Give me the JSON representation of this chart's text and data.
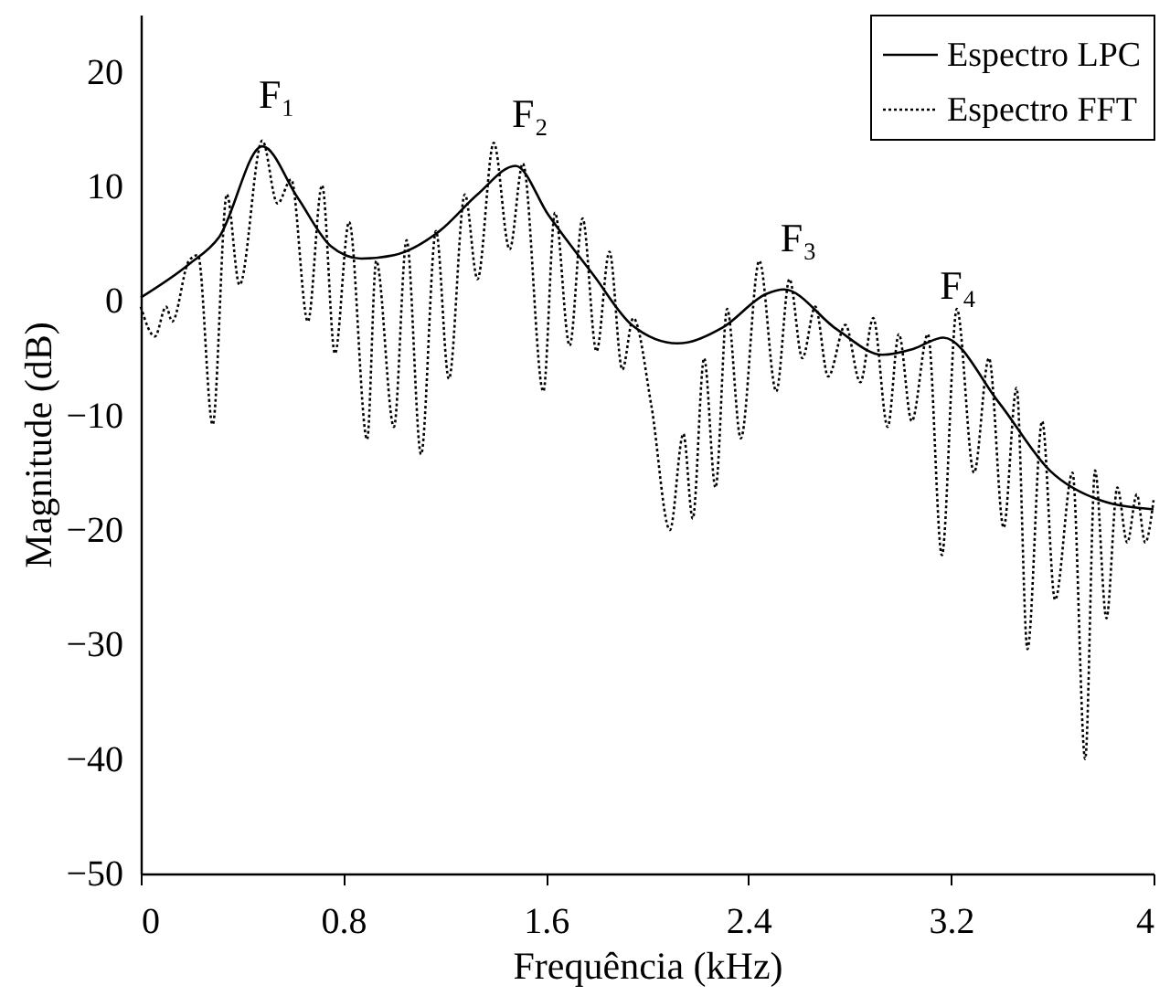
{
  "chart_data": {
    "type": "line",
    "xlabel": "Frequência (kHz)",
    "ylabel": "Magnitude (dB)",
    "xlim": [
      0,
      4
    ],
    "ylim": [
      -50,
      25
    ],
    "xticks": [
      {
        "value": 0,
        "label": "0"
      },
      0.8,
      1.6,
      2.4,
      3.2,
      {
        "value": 4,
        "label": "4"
      }
    ],
    "yticks": [
      -50,
      -40,
      -30,
      -20,
      -10,
      0,
      10,
      20
    ],
    "grid": false,
    "legend": "top right",
    "series": [
      {
        "name": "Espectro LPC",
        "color": "#000000",
        "line_style": "solid",
        "x": [
          0,
          0.19,
          0.31,
          0.48,
          0.62,
          0.75,
          0.87,
          1.0,
          1.18,
          1.33,
          1.48,
          1.61,
          1.79,
          1.94,
          2.12,
          2.3,
          2.47,
          2.54,
          2.75,
          2.93,
          3.05,
          3.17,
          3.39,
          3.59,
          3.79,
          4.0
        ],
        "values": [
          0.3,
          3.2,
          5.6,
          13.5,
          9,
          4.8,
          3.7,
          4,
          6.1,
          9.3,
          11.8,
          7.5,
          2.2,
          -2.1,
          -3.7,
          -2.3,
          0.6,
          1,
          -2.5,
          -4.7,
          -4.2,
          -3.2,
          -8.9,
          -14.8,
          -17.4,
          -18.2
        ]
      },
      {
        "name": "Espectro FFT",
        "color": "#000000",
        "line_style": "dotted",
        "x": [
          0,
          0.056,
          0.1,
          0.124,
          0.19,
          0.226,
          0.284,
          0.34,
          0.39,
          0.48,
          0.54,
          0.594,
          0.66,
          0.716,
          0.767,
          0.823,
          0.894,
          0.93,
          1.0,
          1.05,
          1.107,
          1.166,
          1.217,
          1.28,
          1.33,
          1.394,
          1.457,
          1.509,
          1.59,
          1.636,
          1.694,
          1.745,
          1.8,
          1.851,
          1.902,
          1.945,
          2.017,
          2.09,
          2.143,
          2.18,
          2.225,
          2.27,
          2.316,
          2.37,
          2.443,
          2.51,
          2.562,
          2.613,
          2.664,
          2.715,
          2.783,
          2.842,
          2.893,
          2.95,
          2.994,
          3.045,
          3.109,
          3.164,
          3.223,
          3.291,
          3.35,
          3.408,
          3.459,
          3.502,
          3.56,
          3.611,
          3.68,
          3.73,
          3.769,
          3.814,
          3.857,
          3.896,
          3.934,
          3.967,
          4.0
        ],
        "values": [
          -0.5,
          -3.1,
          -0.5,
          -1.8,
          3.5,
          4,
          -10.8,
          9.3,
          1.4,
          14,
          8.5,
          10.6,
          -1.8,
          10.1,
          -4.6,
          6.9,
          -12.1,
          3.5,
          -11,
          5.3,
          -13.4,
          6.1,
          -6.8,
          9.3,
          1.9,
          13.8,
          4.5,
          12,
          -7.9,
          7.7,
          -3.9,
          7.2,
          -4.4,
          4.3,
          -6,
          -1.5,
          -9.2,
          -20,
          -11.6,
          -19,
          -5,
          -16.3,
          -0.7,
          -12,
          3.5,
          -7.9,
          1.9,
          -5,
          -0.5,
          -6.6,
          -2.1,
          -7.1,
          -1.5,
          -11,
          -2.9,
          -10.5,
          -2.9,
          -22.2,
          -0.7,
          -15,
          -5,
          -19.8,
          -7.6,
          -30.4,
          -10.5,
          -26.1,
          -15,
          -40,
          -14.8,
          -27.7,
          -16.3,
          -21.1,
          -16.9,
          -21.1,
          -17.4
        ]
      }
    ],
    "annotations": [
      "F₁",
      "F₂",
      "F₃",
      "F₄"
    ]
  }
}
